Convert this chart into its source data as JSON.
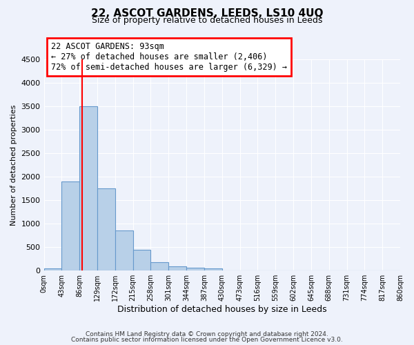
{
  "title": "22, ASCOT GARDENS, LEEDS, LS10 4UQ",
  "subtitle": "Size of property relative to detached houses in Leeds",
  "xlabel": "Distribution of detached houses by size in Leeds",
  "ylabel": "Number of detached properties",
  "bar_color": "#b8d0e8",
  "bar_edge_color": "#6699cc",
  "background_color": "#eef2fb",
  "grid_color": "#ffffff",
  "annotation_line_color": "red",
  "property_size": 93,
  "annotation_text_line1": "22 ASCOT GARDENS: 93sqm",
  "annotation_text_line2": "← 27% of detached houses are smaller (2,406)",
  "annotation_text_line3": "72% of semi-detached houses are larger (6,329) →",
  "bin_edges": [
    0,
    43,
    86,
    129,
    172,
    215,
    258,
    301,
    344,
    387,
    430,
    473,
    516,
    559,
    602,
    645,
    688,
    731,
    774,
    817,
    860
  ],
  "bar_heights": [
    40,
    1900,
    3500,
    1750,
    860,
    450,
    175,
    90,
    55,
    40,
    0,
    0,
    0,
    0,
    0,
    0,
    0,
    0,
    0,
    0
  ],
  "ylim": [
    0,
    4500
  ],
  "yticks": [
    0,
    500,
    1000,
    1500,
    2000,
    2500,
    3000,
    3500,
    4000,
    4500
  ],
  "footer_line1": "Contains HM Land Registry data © Crown copyright and database right 2024.",
  "footer_line2": "Contains public sector information licensed under the Open Government Licence v3.0."
}
